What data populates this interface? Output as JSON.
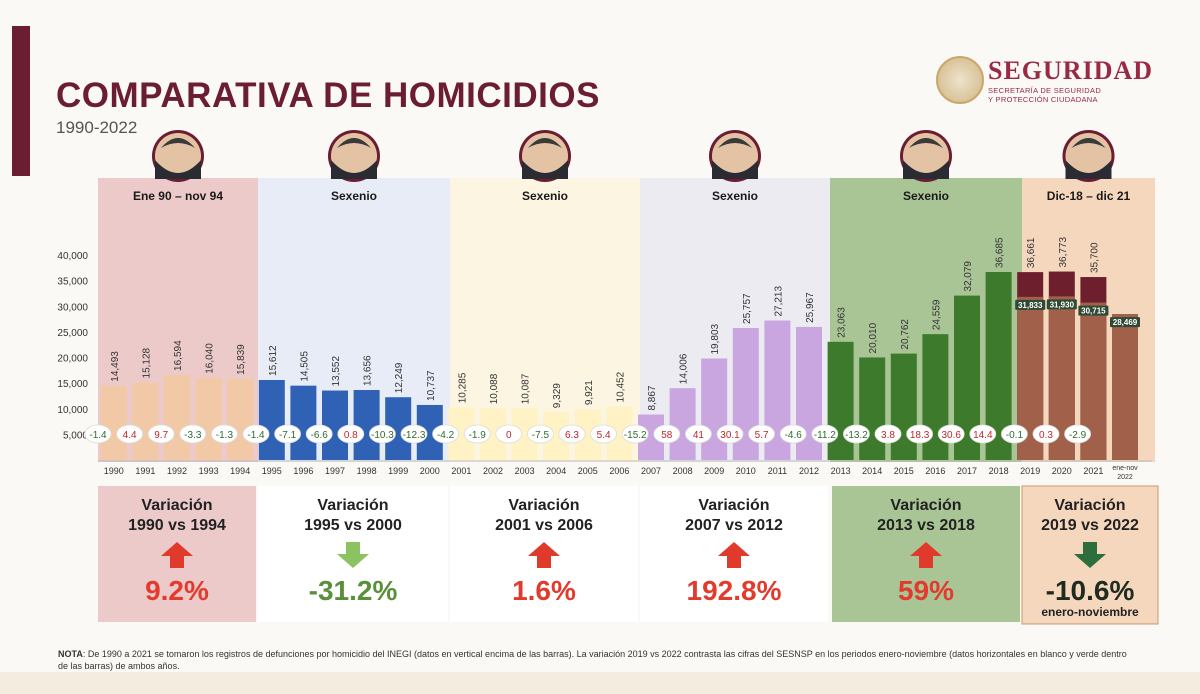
{
  "header": {
    "title": "COMPARATIVA DE HOMICIDIOS",
    "subtitle": "1990-2022"
  },
  "logo": {
    "title": "SEGURIDAD",
    "subtitle_line1": "SECRETARÍA DE SEGURIDAD",
    "subtitle_line2": "Y PROTECCIÓN CIUDADANA"
  },
  "periods": [
    {
      "label": "Ene 90 – nov 94",
      "band_color": "#edcaca",
      "variation_title_1": "Variación",
      "variation_title_2": "1990 vs 1994",
      "variation_value": "9.2%",
      "direction": "up",
      "value_color": "#e23b2e",
      "arrow_color": "#e03a2c"
    },
    {
      "label": "Sexenio",
      "band_color": "#e8ecf6",
      "variation_title_1": "Variación",
      "variation_title_2": "1995 vs 2000",
      "variation_value": "-31.2%",
      "direction": "down",
      "value_color": "#5a8f3c",
      "arrow_color": "#8dc263"
    },
    {
      "label": "Sexenio",
      "band_color": "#fbf5e2",
      "variation_title_1": "Variación",
      "variation_title_2": "2001 vs 2006",
      "variation_value": "1.6%",
      "direction": "up",
      "value_color": "#e23b2e",
      "arrow_color": "#e03a2c"
    },
    {
      "label": "Sexenio",
      "band_color": "#ecebf2",
      "variation_title_1": "Variación",
      "variation_title_2": "2007 vs 2012",
      "variation_value": "192.8%",
      "direction": "up",
      "value_color": "#e23b2e",
      "arrow_color": "#e03a2c"
    },
    {
      "label": "Sexenio",
      "band_color": "#a9c596",
      "variation_title_1": "Variación",
      "variation_title_2": "2013 vs 2018",
      "variation_value": "59%",
      "direction": "up",
      "value_color": "#e23b2e",
      "arrow_color": "#e03a2c"
    },
    {
      "label": "Dic-18 – dic 21",
      "band_color": "#f5d7bd",
      "variation_title_1": "Variación",
      "variation_title_2": "2019 vs 2022",
      "variation_value": "-10.6%",
      "value_note": "enero-noviembre",
      "direction": "down",
      "value_color": "#1f2a20",
      "arrow_color": "#2d6e3c"
    }
  ],
  "chart_data": {
    "type": "bar",
    "title": "COMPARATIVA DE HOMICIDIOS",
    "subtitle": "1990-2022",
    "ylim": [
      0,
      40000
    ],
    "y_ticks": [
      "5,000",
      "10,000",
      "15,000",
      "20,000",
      "25,000",
      "30,000",
      "35,000",
      "40,000"
    ],
    "categories": [
      "1990",
      "1991",
      "1992",
      "1993",
      "1994",
      "1995",
      "1996",
      "1997",
      "1998",
      "1999",
      "2000",
      "2001",
      "2002",
      "2003",
      "2004",
      "2005",
      "2006",
      "2007",
      "2008",
      "2009",
      "2010",
      "2011",
      "2012",
      "2013",
      "2014",
      "2015",
      "2016",
      "2017",
      "2018",
      "2019",
      "2020",
      "2021",
      "ene-nov 2022"
    ],
    "values": [
      14493,
      15128,
      16594,
      16040,
      15839,
      15612,
      14505,
      13552,
      13656,
      12249,
      10737,
      10285,
      10088,
      10087,
      9329,
      9921,
      10452,
      8867,
      14006,
      19803,
      25757,
      27213,
      25967,
      23063,
      20010,
      20762,
      24559,
      32079,
      36685,
      36661,
      36773,
      35700,
      28469
    ],
    "value_labels": [
      "14,493",
      "15,128",
      "16,594",
      "16,040",
      "15,839",
      "15,612",
      "14,505",
      "13,552",
      "13,656",
      "12,249",
      "10,737",
      "10,285",
      "10,088",
      "10,087",
      "9,329",
      "9,921",
      "10,452",
      "8,867",
      "14,006",
      "19,803",
      "25,757",
      "27,213",
      "25,967",
      "23,063",
      "20,010",
      "20,762",
      "24,559",
      "32,079",
      "36,685",
      "36,661",
      "36,773",
      "35,700",
      ""
    ],
    "sesnsp_values": [
      null,
      null,
      null,
      null,
      null,
      null,
      null,
      null,
      null,
      null,
      null,
      null,
      null,
      null,
      null,
      null,
      null,
      null,
      null,
      null,
      null,
      null,
      null,
      null,
      null,
      null,
      null,
      null,
      null,
      31833,
      31930,
      30715,
      28469
    ],
    "sesnsp_labels": [
      "",
      "",
      "",
      "",
      "",
      "",
      "",
      "",
      "",
      "",
      "",
      "",
      "",
      "",
      "",
      "",
      "",
      "",
      "",
      "",
      "",
      "",
      "",
      "",
      "",
      "",
      "",
      "",
      "",
      "31,833",
      "31,930",
      "30,715",
      "28,469"
    ],
    "annual_change": [
      "-1.4",
      "4.4",
      "9.7",
      "-3.3",
      "-1.3",
      "-1.4",
      "-7.1",
      "-6.6",
      "0.8",
      "-10.3",
      "-12.3",
      "-4.2",
      "-1.9",
      "0",
      "-7.5",
      "6.3",
      "5.4",
      "-15.2",
      "58",
      "41",
      "30.1",
      "5.7",
      "-4.6",
      "-11.2",
      "-13.2",
      "3.8",
      "18.3",
      "30.6",
      "14.4",
      "-0.1",
      "0.3",
      "-2.9",
      ""
    ],
    "bar_period": [
      0,
      0,
      0,
      0,
      0,
      1,
      1,
      1,
      1,
      1,
      1,
      2,
      2,
      2,
      2,
      2,
      2,
      3,
      3,
      3,
      3,
      3,
      3,
      4,
      4,
      4,
      4,
      4,
      4,
      5,
      5,
      5,
      5
    ],
    "bar_colors": [
      "#f2c9a6",
      "#f2c9a6",
      "#f2c9a6",
      "#f2c9a6",
      "#f2c9a6",
      "#2f61b5",
      "#2f61b5",
      "#2f61b5",
      "#2f61b5",
      "#2f61b5",
      "#2f61b5",
      "#fff2c4",
      "#fff2c4",
      "#fff2c4",
      "#fff2c4",
      "#fff2c4",
      "#fff2c4",
      "#c9a6e0",
      "#c9a6e0",
      "#c9a6e0",
      "#c9a6e0",
      "#c9a6e0",
      "#c9a6e0",
      "#3e7a2c",
      "#3e7a2c",
      "#3e7a2c",
      "#3e7a2c",
      "#3e7a2c",
      "#3e7a2c",
      "#6e1f2e",
      "#6e1f2e",
      "#6e1f2e",
      "#a0604a"
    ],
    "sesnsp_color": "#a0604a",
    "change_colors": {
      "positive": "#c0262c",
      "negative": "#2f6b2a"
    }
  },
  "note": {
    "label": "NOTA",
    "text": ": De 1990 a 2021 se tomaron los registros de defunciones por homicidio del INEGI (datos en vertical encima de las barras). La variación 2019 vs 2022 contrasta las cifras del SESNSP en los periodos enero-noviembre (datos horizontales en blanco y verde dentro de las barras) de ambos años."
  }
}
